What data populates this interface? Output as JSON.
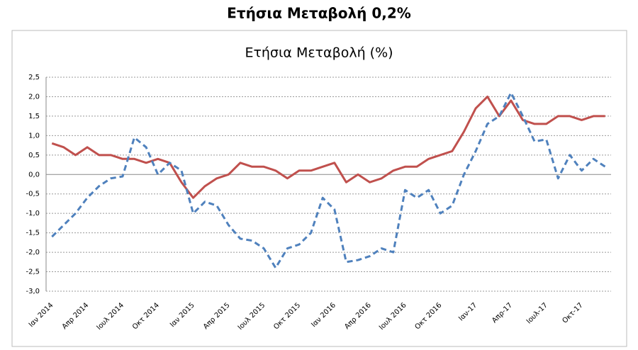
{
  "page_title": "Ετήσια Μεταβολή 0,2%",
  "chart_data": {
    "type": "line",
    "title": "Ετήσια Μεταβολή (%)",
    "categories": [
      "Ιαν 2014",
      null,
      null,
      "Απρ 2014",
      null,
      null,
      "Ιουλ 2014",
      null,
      null,
      "Οκτ 2014",
      null,
      null,
      "Ιαν 2015",
      null,
      null,
      "Απρ 2015",
      null,
      null,
      "Ιουλ 2015",
      null,
      null,
      "Οκτ 2015",
      null,
      null,
      "Ιαν 2016",
      null,
      null,
      "Απρ 2016",
      null,
      null,
      "Ιουλ 2016",
      null,
      null,
      "Οκτ 2016",
      null,
      null,
      "Ιαν-17",
      null,
      null,
      "Απρ-17",
      null,
      null,
      "Ιουλ-17",
      null,
      null,
      "Οκτ-17",
      null,
      null
    ],
    "series": [
      {
        "color": "#c0504d",
        "line_style": "solid",
        "values": [
          0.8,
          0.7,
          0.5,
          0.7,
          0.5,
          0.5,
          0.4,
          0.4,
          0.3,
          0.4,
          0.3,
          -0.2,
          -0.6,
          -0.3,
          -0.1,
          0.0,
          0.3,
          0.2,
          0.2,
          0.1,
          -0.1,
          0.1,
          0.1,
          0.2,
          0.3,
          -0.2,
          0.0,
          -0.2,
          -0.1,
          0.1,
          0.2,
          0.2,
          0.4,
          0.5,
          0.6,
          1.1,
          1.7,
          2.0,
          1.5,
          1.9,
          1.4,
          1.3,
          1.3,
          1.5,
          1.5,
          1.4,
          1.5,
          1.5
        ]
      },
      {
        "color": "#4f81bd",
        "line_style": "dashed",
        "values": [
          -1.6,
          -1.3,
          -1.0,
          -0.6,
          -0.3,
          -0.1,
          -0.05,
          0.95,
          0.7,
          0.0,
          0.3,
          0.1,
          -1.0,
          -0.7,
          -0.8,
          -1.3,
          -1.65,
          -1.7,
          -1.9,
          -2.4,
          -1.9,
          -1.8,
          -1.5,
          -0.6,
          -0.9,
          -2.25,
          -2.2,
          -2.1,
          -1.9,
          -2.0,
          -0.4,
          -0.6,
          -0.4,
          -1.0,
          -0.8,
          0.0,
          0.6,
          1.3,
          1.5,
          2.1,
          1.5,
          0.85,
          0.9,
          -0.1,
          0.5,
          0.1,
          0.4,
          0.2
        ]
      }
    ],
    "ylim": [
      -3.0,
      2.5
    ],
    "yticks": [
      {
        "value": -3.0,
        "label": "-3,0"
      },
      {
        "value": -2.5,
        "label": "-2,5"
      },
      {
        "value": -2.0,
        "label": "-2,0"
      },
      {
        "value": -1.5,
        "label": "-1,5"
      },
      {
        "value": -1.0,
        "label": "-1,0"
      },
      {
        "value": -0.5,
        "label": "-0,5"
      },
      {
        "value": 0.0,
        "label": "0,0"
      },
      {
        "value": 0.5,
        "label": "0,5"
      },
      {
        "value": 1.0,
        "label": "1,0"
      },
      {
        "value": 1.5,
        "label": "1,5"
      },
      {
        "value": 2.0,
        "label": "2,0"
      },
      {
        "value": 2.5,
        "label": "2,5"
      }
    ],
    "grid": true
  }
}
